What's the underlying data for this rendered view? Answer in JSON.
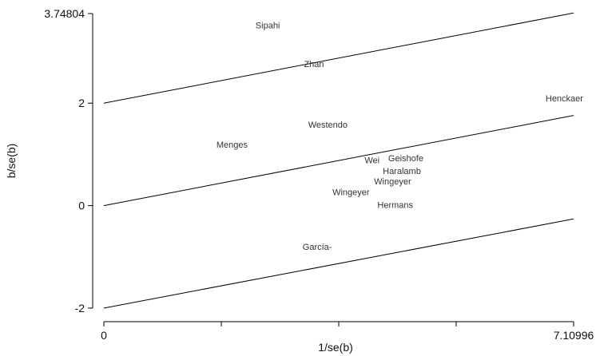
{
  "chart_data": {
    "type": "scatter",
    "title": "",
    "xlabel": "1/se(b)",
    "ylabel": "b/se(b)",
    "xlim": [
      0,
      7.10996
    ],
    "ylim": [
      -2,
      3.74804
    ],
    "x_ticks": [
      {
        "value": 0,
        "label": "0"
      },
      {
        "value": 1.77749,
        "label": ""
      },
      {
        "value": 3.55498,
        "label": ""
      },
      {
        "value": 5.33247,
        "label": ""
      },
      {
        "value": 7.10996,
        "label": "7.10996"
      }
    ],
    "y_ticks": [
      {
        "value": -2,
        "label": "-2"
      },
      {
        "value": 0,
        "label": "0"
      },
      {
        "value": 2,
        "label": "2"
      },
      {
        "value": 3.74804,
        "label": "3.74804"
      }
    ],
    "reference_lines": [
      {
        "x": [
          0,
          7.10996
        ],
        "y": [
          2,
          3.76
        ]
      },
      {
        "x": [
          0,
          7.10996
        ],
        "y": [
          0,
          1.76
        ]
      },
      {
        "x": [
          0,
          7.10996
        ],
        "y": [
          -2,
          -0.26
        ]
      }
    ],
    "points": [
      {
        "label": "Sipahi",
        "x": 2.48,
        "y": 3.52
      },
      {
        "label": "Zhan",
        "x": 3.18,
        "y": 2.77
      },
      {
        "label": "Henckaer",
        "x": 6.97,
        "y": 2.1
      },
      {
        "label": "Westendo",
        "x": 3.39,
        "y": 1.58
      },
      {
        "label": "Menges",
        "x": 1.94,
        "y": 1.19
      },
      {
        "label": "Wei",
        "x": 4.06,
        "y": 0.89
      },
      {
        "label": "Geishofe",
        "x": 4.57,
        "y": 0.93
      },
      {
        "label": "Haralamb",
        "x": 4.51,
        "y": 0.68
      },
      {
        "label": "Wingeyer",
        "x": 4.37,
        "y": 0.48
      },
      {
        "label": "Wingeyer",
        "x": 3.74,
        "y": 0.27
      },
      {
        "label": "Hermans",
        "x": 4.41,
        "y": 0.02
      },
      {
        "label": "García-",
        "x": 3.23,
        "y": -0.8
      }
    ]
  }
}
